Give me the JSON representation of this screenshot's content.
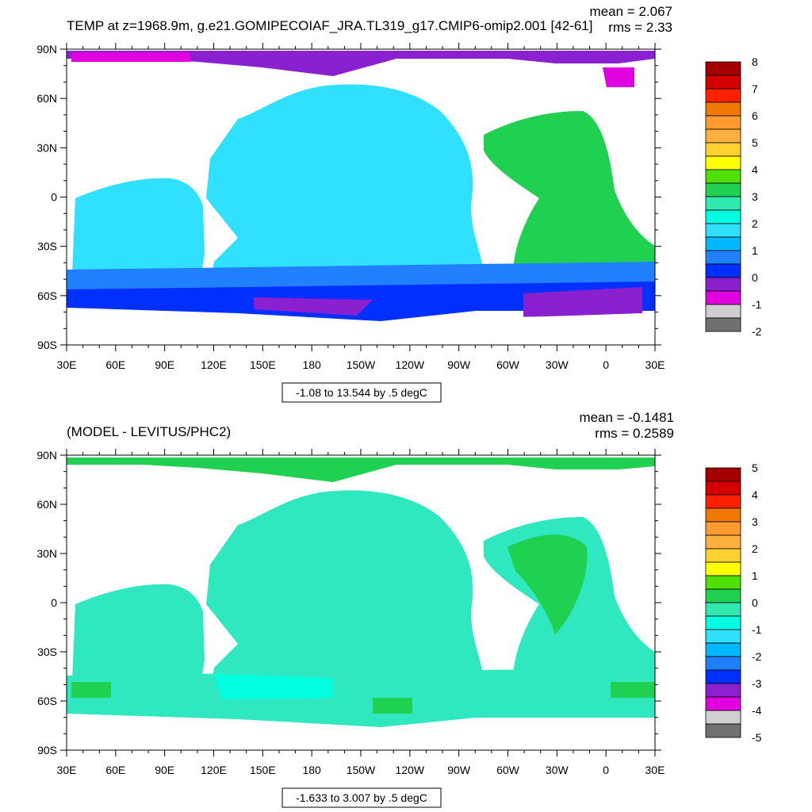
{
  "panels": [
    {
      "title": "TEMP at z=1968.9m, g.e21.GOMIPECOIAF_JRA.TL319_g17.CMIP6-omip2.001 [42-61]",
      "mean_text": "mean = 2.067",
      "rms_text": "rms = 2.33",
      "range_text": "-1.08 to 13.544 by .5 degC",
      "colorbar_labels": [
        "8",
        "7",
        "6",
        "5",
        "4",
        "3",
        "2",
        "1",
        "0",
        "-1",
        "-2"
      ],
      "colorbar_colors": [
        "#a50000",
        "#d40000",
        "#ff2000",
        "#f07800",
        "#ff9a30",
        "#ffb040",
        "#ffd030",
        "#ffff00",
        "#50e000",
        "#20d050",
        "#30e8b0",
        "#00ffe0",
        "#30e0ff",
        "#00b8ff",
        "#2080ff",
        "#0030ff",
        "#8a20d0",
        "#e000e0",
        "#d0d0d0",
        "#707070"
      ],
      "ocean_color": "#30e0ff"
    },
    {
      "title": "(MODEL - LEVITUS/PHC2)",
      "mean_text": "mean = -0.1481",
      "rms_text": "rms = 0.2589",
      "range_text": "-1.633 to 3.007 by .5 degC",
      "colorbar_labels": [
        "5",
        "4",
        "3",
        "2",
        "1",
        "0",
        "-1",
        "-2",
        "-3",
        "-4",
        "-5"
      ],
      "colorbar_colors": [
        "#a50000",
        "#d40000",
        "#ff2000",
        "#f07800",
        "#ff9a30",
        "#ffb040",
        "#ffd030",
        "#ffff00",
        "#50e000",
        "#20d050",
        "#30e8b0",
        "#00ffe0",
        "#30e0ff",
        "#00b8ff",
        "#2080ff",
        "#0030ff",
        "#8a20d0",
        "#e000e0",
        "#d0d0d0",
        "#707070"
      ],
      "ocean_color": "#30e8c0"
    }
  ],
  "lat_labels": [
    "90N",
    "60N",
    "30N",
    "0",
    "30S",
    "60S",
    "90S"
  ],
  "lon_labels": [
    "30E",
    "60E",
    "90E",
    "120E",
    "150E",
    "180",
    "150W",
    "120W",
    "90W",
    "60W",
    "30W",
    "0",
    "30E"
  ]
}
